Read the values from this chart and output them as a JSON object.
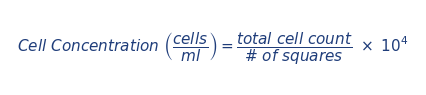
{
  "background_color": "#ffffff",
  "text_color": "#1f3d7a",
  "figsize": [
    4.26,
    0.95
  ],
  "dpi": 100,
  "formula": "$\\mathbf{\\it{Cell\\ Concentration\\ (\\dfrac{cells}{ml}) = \\dfrac{total\\ cell\\ count}{\\#\\ of\\ squares}\\ \\times\\ 10^{4}}}$"
}
